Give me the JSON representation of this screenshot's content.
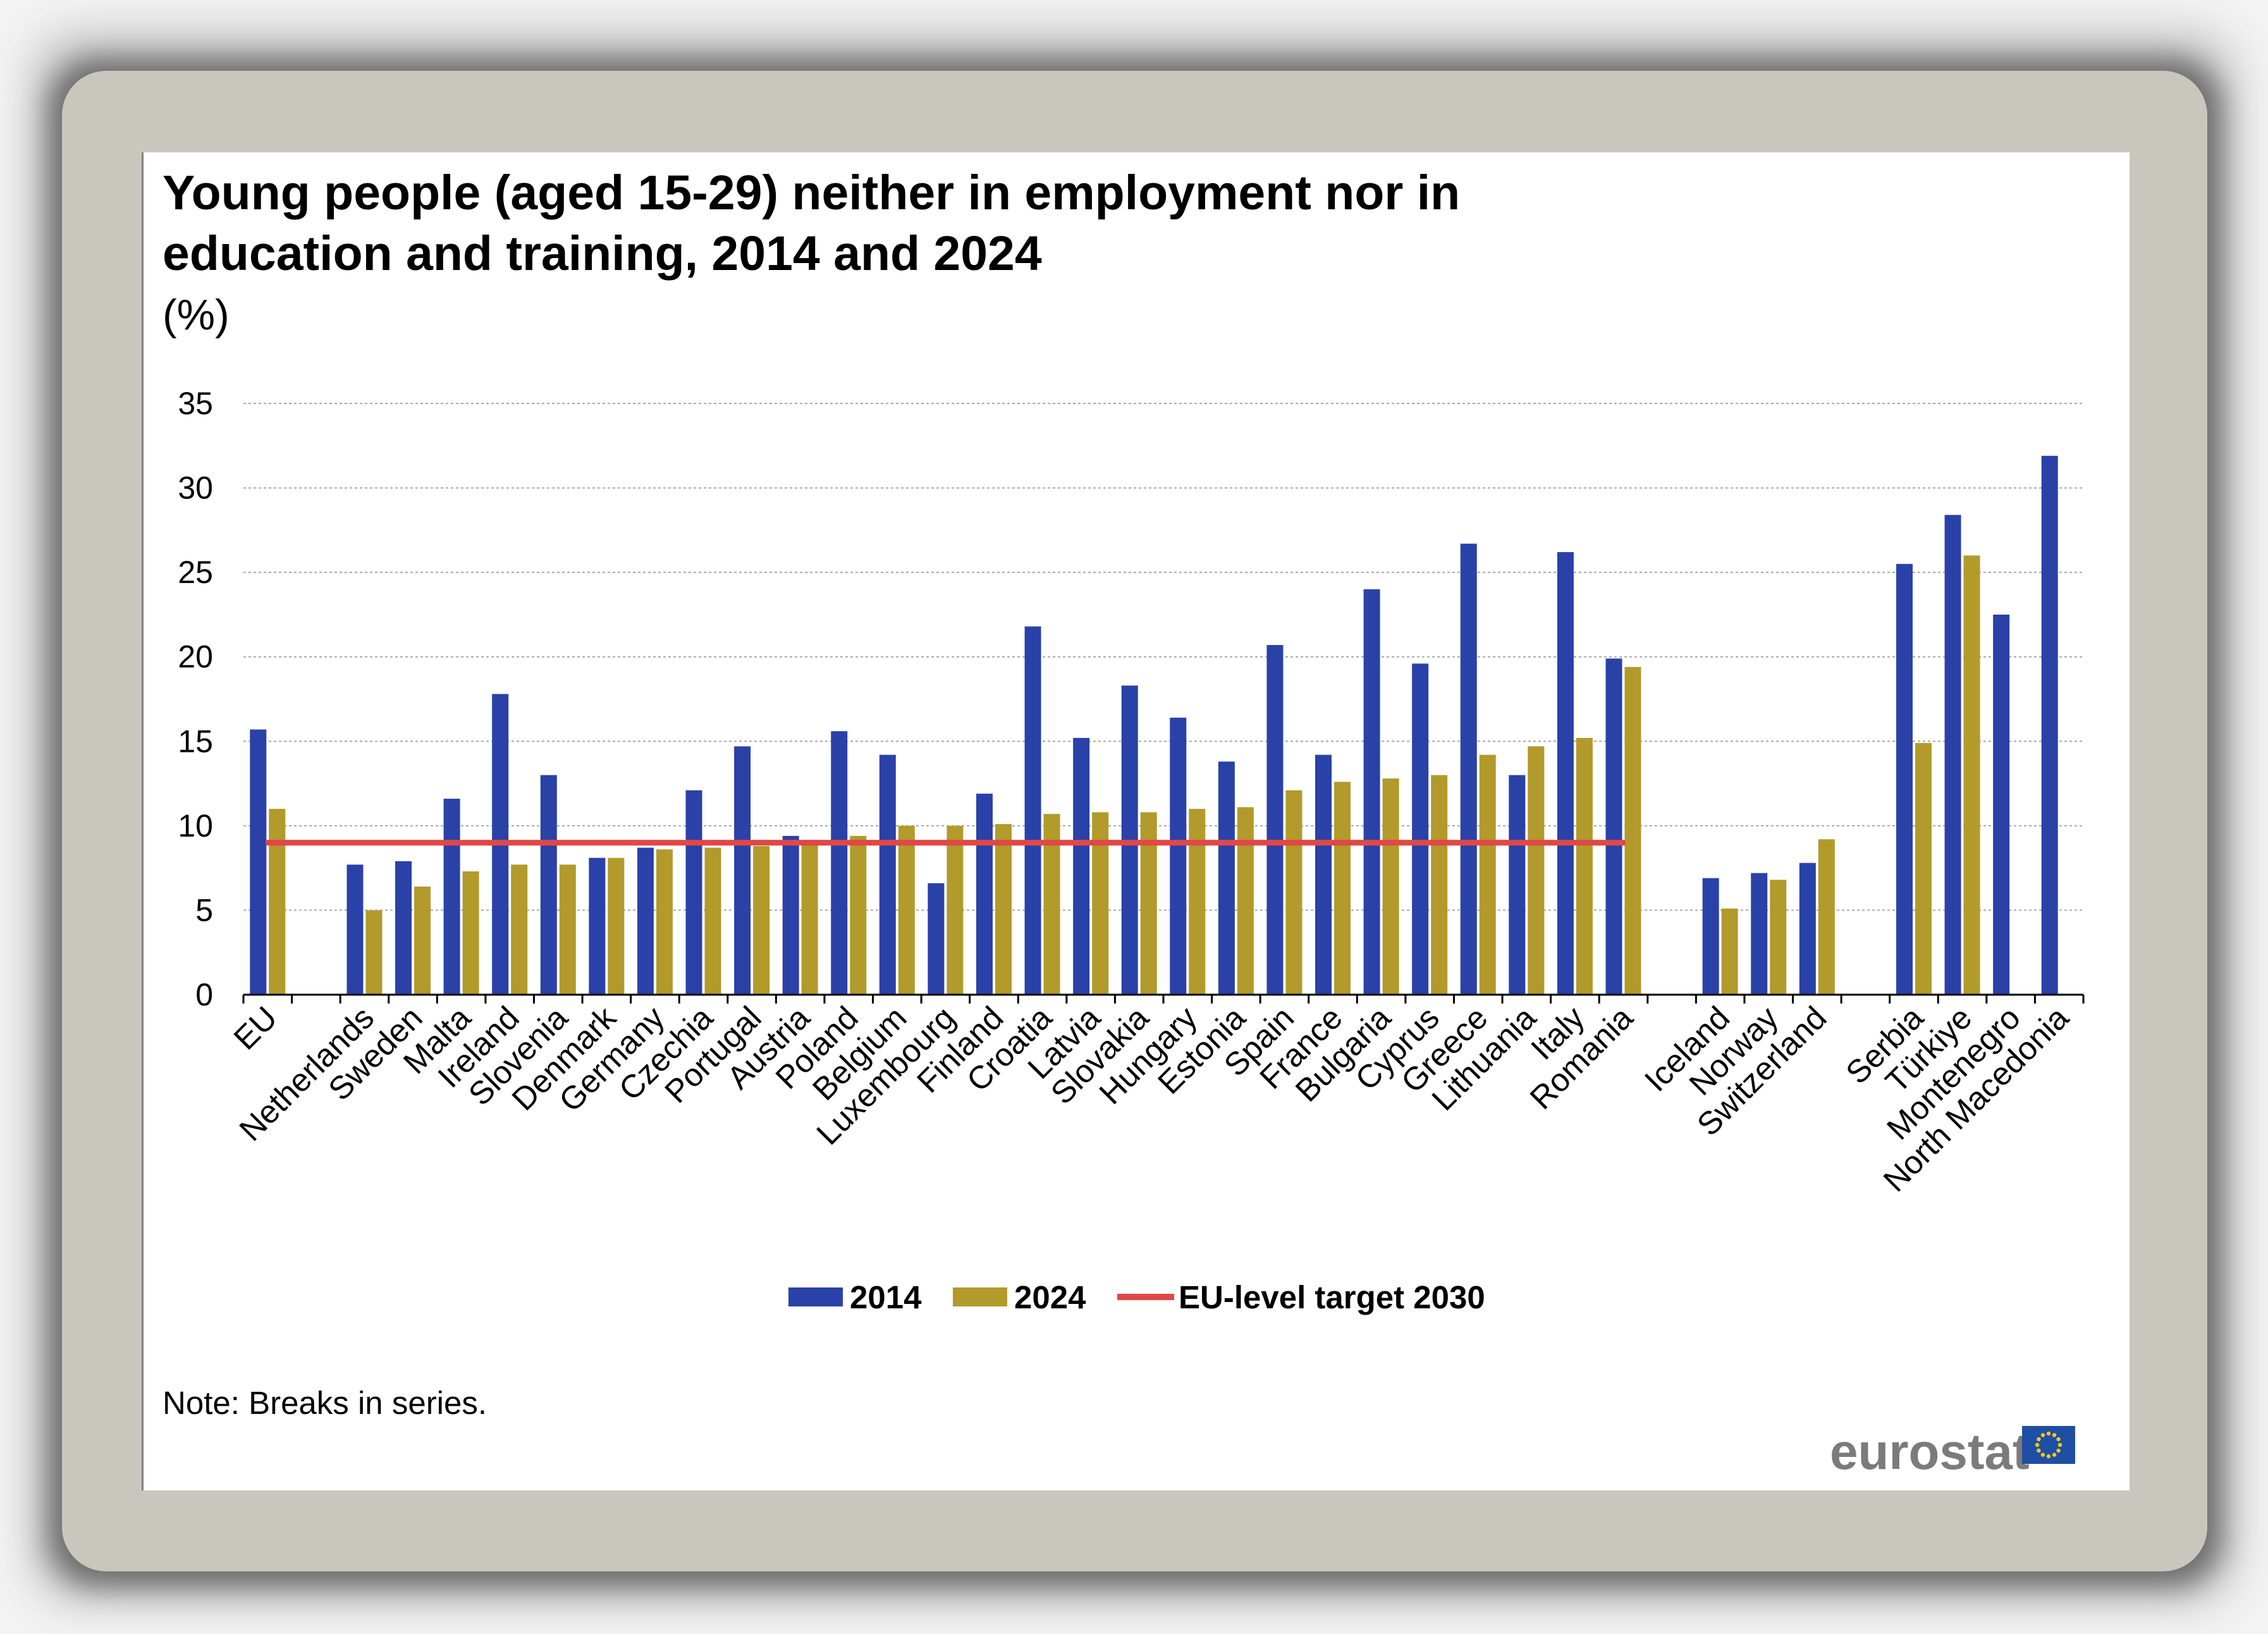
{
  "chart_data": {
    "type": "bar",
    "title_lines": [
      "Young people (aged 15-29) neither in employment nor in",
      "education and training, 2014 and 2024"
    ],
    "unit": "(%)",
    "ylim": [
      0,
      35
    ],
    "yticks": [
      0,
      5,
      10,
      15,
      20,
      25,
      30,
      35
    ],
    "grid": true,
    "legend_position": "bottom",
    "categories": [
      "EU",
      "",
      "Netherlands",
      "Sweden",
      "Malta",
      "Ireland",
      "Slovenia",
      "Denmark",
      "Germany",
      "Czechia",
      "Portugal",
      "Austria",
      "Poland",
      "Belgium",
      "Luxembourg",
      "Finland",
      "Croatia",
      "Latvia",
      "Slovakia",
      "Hungary",
      "Estonia",
      "Spain",
      "France",
      "Bulgaria",
      "Cyprus",
      "Greece",
      "Lithuania",
      "Italy",
      "Romania",
      "",
      "Iceland",
      "Norway",
      "Switzerland",
      "",
      "Serbia",
      "Türkiye",
      "Montenegro",
      "North Macedonia"
    ],
    "series": [
      {
        "name": "2014",
        "color": "#2a41a8",
        "values": [
          15.7,
          null,
          7.7,
          7.9,
          11.6,
          17.8,
          13.0,
          8.1,
          8.7,
          12.1,
          14.7,
          9.4,
          15.6,
          14.2,
          6.6,
          11.9,
          21.8,
          15.2,
          18.3,
          16.4,
          13.8,
          20.7,
          14.2,
          24.0,
          19.6,
          26.7,
          13.0,
          26.2,
          19.9,
          null,
          6.9,
          7.2,
          7.8,
          null,
          25.5,
          28.4,
          22.5,
          31.9
        ]
      },
      {
        "name": "2024",
        "color": "#b29a2b",
        "values": [
          11.0,
          null,
          5.0,
          6.4,
          7.3,
          7.7,
          7.7,
          8.1,
          8.6,
          8.7,
          8.8,
          9.1,
          9.4,
          10.0,
          10.0,
          10.1,
          10.7,
          10.8,
          10.8,
          11.0,
          11.1,
          12.1,
          12.6,
          12.8,
          13.0,
          14.2,
          14.7,
          15.2,
          19.4,
          null,
          5.1,
          6.8,
          9.2,
          null,
          14.9,
          26.0,
          null,
          null
        ]
      }
    ],
    "target": {
      "name": "EU-level target 2030",
      "value": 9.0,
      "color": "#e04848",
      "from_category": 0,
      "to_category": 28
    }
  },
  "note": "Note: Breaks in series.",
  "logo": {
    "text": "eurostat",
    "flag_color": "#1f4fa3",
    "star_color": "#f2c81e"
  }
}
